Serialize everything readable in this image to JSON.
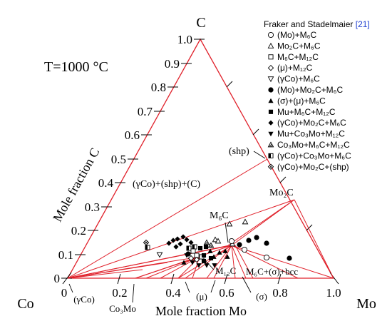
{
  "title": "T=1000 °C",
  "vertices": {
    "top": "C",
    "left": "Co",
    "right": "Mo"
  },
  "axes": {
    "left_label": "Mole fraction C",
    "bottom_label": "Mole fraction Mo",
    "left_ticks": [
      "0",
      "0.1",
      "0.2",
      "0.3",
      "0.4",
      "0.5",
      "0.6",
      "0.7",
      "0.8",
      "0.9",
      "1.0"
    ],
    "bottom_ticks": [
      "0",
      "0.2",
      "0.4",
      "0.6",
      "0.8",
      "1.0"
    ]
  },
  "region_labels": {
    "gco_shp_c": "(γCo)+(shp)+(C)",
    "shp": "(shp)",
    "mo2c": "Mo₂C",
    "m6c": "M₆C",
    "m12c": "M₁₂C",
    "m6c_sigma_bcc": "M₆C+(σ)+bcc"
  },
  "bottom_annotations": {
    "gco": "(γCo)",
    "co3mo": "Co₃Mo",
    "mu": "(μ)",
    "sigma": "(σ)"
  },
  "legend": {
    "title": "Fraker and Stadelmaier",
    "ref": "[21]",
    "items": [
      {
        "marker": "open-circle",
        "label": "(Mo)+M₆C"
      },
      {
        "marker": "open-triangle",
        "label": "Mo₂C+M₆C"
      },
      {
        "marker": "open-square",
        "label": "M₆C+M₁₂C"
      },
      {
        "marker": "open-diamond",
        "label": "(μ)+M₁₂C"
      },
      {
        "marker": "open-triangle-down",
        "label": "(γCo)+M₆C"
      },
      {
        "marker": "filled-circle",
        "label": "(Mo)+Mo₂C+M₆C"
      },
      {
        "marker": "filled-triangle",
        "label": "(σ)+(μ)+M₆C"
      },
      {
        "marker": "filled-square",
        "label": "Mu+M₆C+M₁₂C"
      },
      {
        "marker": "filled-diamond",
        "label": "(γCo)+Mo₂C+M₆C"
      },
      {
        "marker": "filled-triangle-down",
        "label": "Mu+Co₃Mo+M₁₂C"
      },
      {
        "marker": "hatched-triangle",
        "label": "Co₃Mo+M₆C+M₁₂C"
      },
      {
        "marker": "half-square",
        "label": "(γCo)+Co₃Mo+M₆C"
      },
      {
        "marker": "hatched-diamond",
        "label": "(γCo)+Mo₂C+(shp)"
      }
    ]
  },
  "colors": {
    "phase_line": "#e0202a",
    "frame": "#e0202a",
    "marker": "#000000",
    "ref": "#1f3fd1"
  }
}
